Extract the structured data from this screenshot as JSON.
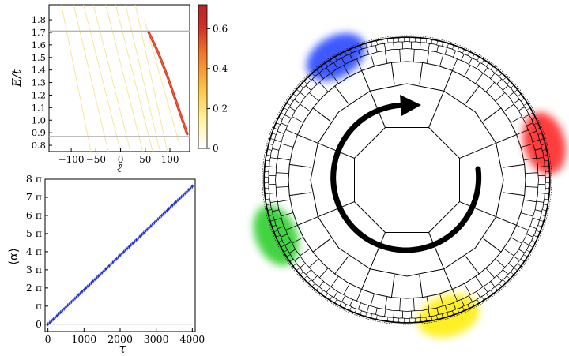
{
  "chart_data": [
    {
      "type": "heatmap",
      "xlabel": "ℓ",
      "ylabel": "E/t",
      "xlim": [
        -145,
        140
      ],
      "ylim": [
        0.75,
        1.92
      ],
      "x_ticks": [
        -100,
        -50,
        0,
        50,
        100
      ],
      "y_ticks": [
        0.8,
        0.9,
        1.0,
        1.1,
        1.2,
        1.3,
        1.4,
        1.5,
        1.6,
        1.7,
        1.8
      ],
      "x_tick_labels": [
        "−100",
        "−50",
        "0",
        "50",
        "100"
      ],
      "y_tick_labels": [
        "0.8",
        "0.9",
        "1.0",
        "1.1",
        "1.2",
        "1.3",
        "1.4",
        "1.5",
        "1.6",
        "1.7",
        "1.8"
      ],
      "horizontal_lines": [
        1.71,
        0.87
      ],
      "colorbar": {
        "range": [
          0,
          0.72
        ],
        "ticks": [
          0,
          0.2,
          0.4,
          0.6
        ],
        "tick_labels": [
          "0",
          "0.2",
          "0.4",
          "0.6"
        ],
        "colors": [
          "#ffffff",
          "#fff3a0",
          "#fcc84a",
          "#f07a2a",
          "#cf2d2a",
          "#b3262a"
        ]
      },
      "bright_branch": [
        {
          "x": 57,
          "y": 1.7
        },
        {
          "x": 75,
          "y": 1.55
        },
        {
          "x": 95,
          "y": 1.35
        },
        {
          "x": 115,
          "y": 1.12
        },
        {
          "x": 135,
          "y": 0.89
        }
      ],
      "faint_branches": [
        {
          "x0": -120,
          "y0": 1.92,
          "x1": -60,
          "y1": 0.75
        },
        {
          "x0": -95,
          "y0": 1.92,
          "x1": -25,
          "y1": 0.75
        },
        {
          "x0": -75,
          "y0": 1.92,
          "x1": 0,
          "y1": 0.75
        },
        {
          "x0": -55,
          "y0": 1.92,
          "x1": 20,
          "y1": 0.75
        },
        {
          "x0": -30,
          "y0": 1.92,
          "x1": 45,
          "y1": 0.75
        },
        {
          "x0": -10,
          "y0": 1.92,
          "x1": 65,
          "y1": 0.75
        },
        {
          "x0": 10,
          "y0": 1.92,
          "x1": 80,
          "y1": 0.75
        },
        {
          "x0": 30,
          "y0": 1.92,
          "x1": 95,
          "y1": 0.75
        },
        {
          "x0": 48,
          "y0": 1.8,
          "x1": 120,
          "y1": 0.8
        }
      ]
    },
    {
      "type": "scatter",
      "xlabel": "τ",
      "ylabel": "⟨α⟩",
      "xlim": [
        -80,
        4080
      ],
      "ylim_pi": [
        -0.4,
        8.0
      ],
      "x_ticks": [
        0,
        1000,
        2000,
        3000,
        4000
      ],
      "x_tick_labels": [
        "0",
        "1000",
        "2000",
        "3000",
        "4000"
      ],
      "y_ticks_pi": [
        0,
        1,
        2,
        3,
        4,
        5,
        6,
        7,
        8
      ],
      "y_tick_labels": [
        "0",
        "π",
        "2 π",
        "3 π",
        "4 π",
        "5 π",
        "6 π",
        "7 π",
        "8 π"
      ],
      "series": [
        {
          "tau_start": 0,
          "tau_end": 4000,
          "tau_step": 50,
          "alpha_pi_start": 0,
          "alpha_pi_end": 7.6,
          "color": "#1f2fd0"
        }
      ]
    }
  ],
  "lattice": {
    "edge_color": "#000000",
    "arrow_color": "#000000",
    "blobs": [
      {
        "name": "blue",
        "color": "#1a3cff",
        "angle_deg": -120
      },
      {
        "name": "red",
        "color": "#ff1a1a",
        "angle_deg": -15
      },
      {
        "name": "yellow",
        "color": "#ffee00",
        "angle_deg": 73
      },
      {
        "name": "green",
        "color": "#22cc22",
        "angle_deg": 157
      }
    ]
  }
}
